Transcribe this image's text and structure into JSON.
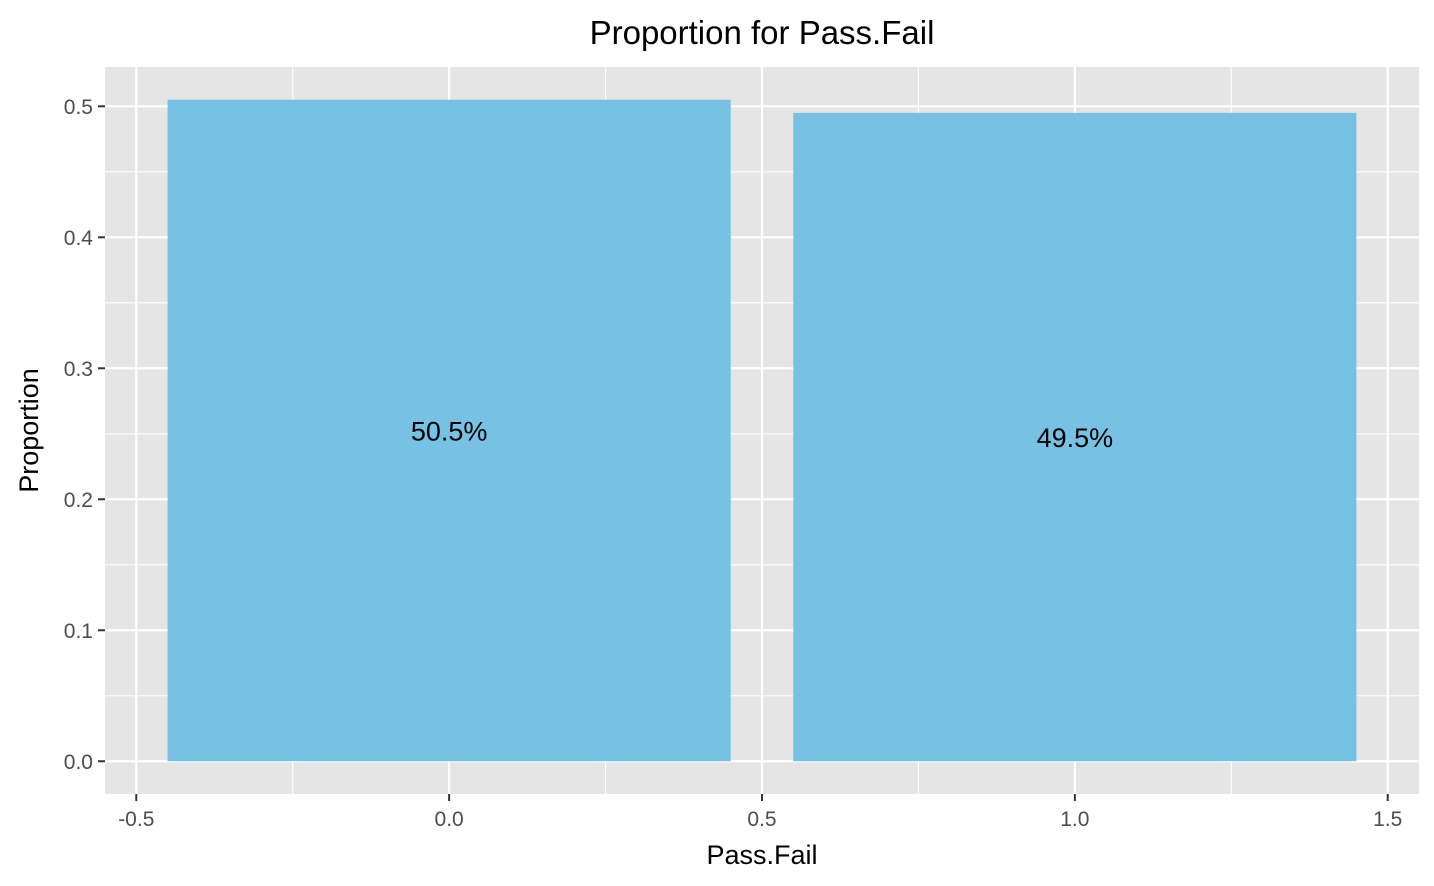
{
  "chart_data": {
    "type": "bar",
    "title": "Proportion for Pass.Fail",
    "xlabel": "Pass.Fail",
    "ylabel": "Proportion",
    "x": [
      0,
      1
    ],
    "values": [
      0.505,
      0.495
    ],
    "bar_labels": [
      "50.5%",
      "49.5%"
    ],
    "bar_width": 0.9,
    "xlim": [
      -0.55,
      1.55
    ],
    "ylim": [
      -0.025,
      0.53
    ],
    "x_ticks": [
      -0.5,
      0.0,
      0.5,
      1.0,
      1.5
    ],
    "x_tick_labels": [
      "-0.5",
      "0.0",
      "0.5",
      "1.0",
      "1.5"
    ],
    "y_ticks": [
      0.0,
      0.1,
      0.2,
      0.3,
      0.4,
      0.5
    ],
    "y_tick_labels": [
      "0.0",
      "0.1",
      "0.2",
      "0.3",
      "0.4",
      "0.5"
    ],
    "grid": true,
    "colors": {
      "bar": "#77c1e4",
      "panel_background": "#e5e5e5",
      "grid": "#ffffff"
    }
  }
}
